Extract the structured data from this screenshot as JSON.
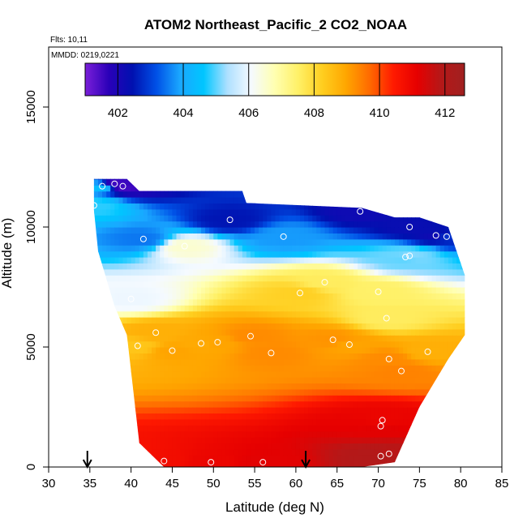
{
  "chart_data": {
    "type": "heatmap",
    "title": "ATOM2 Northeast_Pacific_2 CO2_NOAA",
    "flights_note": "Flts: 10,11",
    "date_note": "MMDD: 0219,0221",
    "xlabel": "Latitude (deg N)",
    "ylabel": "Altitude (m)",
    "xlim": [
      30,
      85
    ],
    "ylim": [
      0,
      17500
    ],
    "x_ticks": [
      30,
      35,
      40,
      45,
      50,
      55,
      60,
      65,
      70,
      75,
      80,
      85
    ],
    "y_ticks": [
      0,
      5000,
      10000,
      15000
    ],
    "colorbar": {
      "range": [
        401,
        412.6
      ],
      "ticks": [
        402,
        404,
        406,
        408,
        410,
        412
      ],
      "palette": [
        "#7b1fd9",
        "#2a00b8",
        "#0011b0",
        "#0050e6",
        "#1aa7ff",
        "#00c6ff",
        "#aee0ff",
        "#f5faff",
        "#ffffb0",
        "#fff066",
        "#ffce1f",
        "#ffa600",
        "#ff6a00",
        "#ff1a00",
        "#e60000",
        "#b51818",
        "#a02020"
      ]
    },
    "arrows_at_latitude": [
      34.7,
      61.2
    ],
    "profile_envelope": [
      {
        "lat": 35.5,
        "top": 12000,
        "bottom": 10700
      },
      {
        "lat": 36,
        "top": 12000,
        "bottom": 9000
      },
      {
        "lat": 38,
        "top": 12000,
        "bottom": 6700
      },
      {
        "lat": 39.5,
        "top": 12000,
        "bottom": 5500
      },
      {
        "lat": 41,
        "top": 11500,
        "bottom": 1000
      },
      {
        "lat": 44,
        "top": 11500,
        "bottom": 0
      },
      {
        "lat": 53.5,
        "top": 11500,
        "bottom": 0
      },
      {
        "lat": 54,
        "top": 11000,
        "bottom": 0
      },
      {
        "lat": 68,
        "top": 10800,
        "bottom": 0
      },
      {
        "lat": 72,
        "top": 10400,
        "bottom": 200
      },
      {
        "lat": 75,
        "top": 10400,
        "bottom": 2500
      },
      {
        "lat": 78.5,
        "top": 10000,
        "bottom": 4500
      },
      {
        "lat": 80.5,
        "top": 8000,
        "bottom": 5500
      }
    ],
    "observations": [
      {
        "lat": 36.5,
        "alt": 11700,
        "co2": 404.5
      },
      {
        "lat": 38,
        "alt": 11800,
        "co2": 401.5
      },
      {
        "lat": 39,
        "alt": 11700,
        "co2": 401.5
      },
      {
        "lat": 35.5,
        "alt": 10900,
        "co2": 404.8
      },
      {
        "lat": 52,
        "alt": 10300,
        "co2": 402.5
      },
      {
        "lat": 67.8,
        "alt": 10650,
        "co2": 402.2
      },
      {
        "lat": 73.8,
        "alt": 10000,
        "co2": 402.3
      },
      {
        "lat": 41.5,
        "alt": 9500,
        "co2": 403.5
      },
      {
        "lat": 58.5,
        "alt": 9600,
        "co2": 403.8
      },
      {
        "lat": 77,
        "alt": 9650,
        "co2": 402.2
      },
      {
        "lat": 78.3,
        "alt": 9600,
        "co2": 402.8
      },
      {
        "lat": 46.5,
        "alt": 9200,
        "co2": 406.5
      },
      {
        "lat": 73.3,
        "alt": 8750,
        "co2": 405.0
      },
      {
        "lat": 73.8,
        "alt": 8800,
        "co2": 405.2
      },
      {
        "lat": 63.5,
        "alt": 7700,
        "co2": 407.6
      },
      {
        "lat": 60.5,
        "alt": 7250,
        "co2": 408.2
      },
      {
        "lat": 70,
        "alt": 7300,
        "co2": 407.5
      },
      {
        "lat": 40,
        "alt": 7000,
        "co2": 406.0
      },
      {
        "lat": 71,
        "alt": 6200,
        "co2": 407.6
      },
      {
        "lat": 43,
        "alt": 5600,
        "co2": 408.8
      },
      {
        "lat": 54.5,
        "alt": 5450,
        "co2": 409.3
      },
      {
        "lat": 64.5,
        "alt": 5300,
        "co2": 409.2
      },
      {
        "lat": 50.5,
        "alt": 5200,
        "co2": 409.0
      },
      {
        "lat": 48.5,
        "alt": 5150,
        "co2": 408.9
      },
      {
        "lat": 66.5,
        "alt": 5100,
        "co2": 409.0
      },
      {
        "lat": 40.8,
        "alt": 5050,
        "co2": 408.4
      },
      {
        "lat": 45,
        "alt": 4850,
        "co2": 409.0
      },
      {
        "lat": 57,
        "alt": 4750,
        "co2": 409.3
      },
      {
        "lat": 76,
        "alt": 4800,
        "co2": 408.8
      },
      {
        "lat": 71.3,
        "alt": 4500,
        "co2": 409.3
      },
      {
        "lat": 72.8,
        "alt": 4000,
        "co2": 409.4
      },
      {
        "lat": 70.5,
        "alt": 1950,
        "co2": 411.0
      },
      {
        "lat": 70.3,
        "alt": 1700,
        "co2": 411.2
      },
      {
        "lat": 70.3,
        "alt": 450,
        "co2": 412.0
      },
      {
        "lat": 71.3,
        "alt": 550,
        "co2": 411.8
      },
      {
        "lat": 40.5,
        "alt": 150,
        "co2": 410.5
      },
      {
        "lat": 44,
        "alt": 250,
        "co2": 410.8
      },
      {
        "lat": 49.7,
        "alt": 200,
        "co2": 411.0
      },
      {
        "lat": 56,
        "alt": 200,
        "co2": 411.2
      }
    ]
  }
}
